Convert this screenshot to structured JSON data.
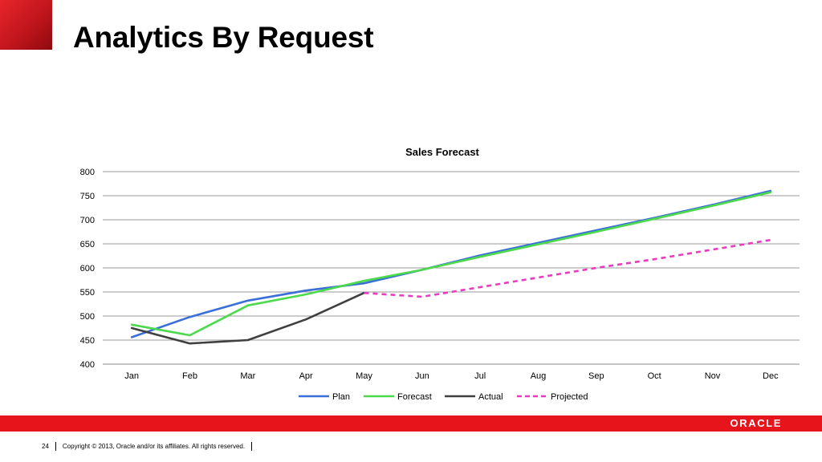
{
  "slide": {
    "title": "Analytics By Request",
    "page_number": "24",
    "copyright": "Copyright © 2013, Oracle and/or its affiliates. All rights reserved.",
    "logo_text": "ORACLE",
    "colors": {
      "brand_red": "#e8141b",
      "corner": "#c0151c"
    }
  },
  "chart_data": {
    "type": "line",
    "title": "Sales Forecast",
    "categories": [
      "Jan",
      "Feb",
      "Mar",
      "Apr",
      "May",
      "Jun",
      "Jul",
      "Aug",
      "Sep",
      "Oct",
      "Nov",
      "Dec"
    ],
    "y_ticks": [
      "400",
      "450",
      "500",
      "550",
      "600",
      "650",
      "700",
      "750",
      "800"
    ],
    "ylim": [
      400,
      800
    ],
    "grid": true,
    "legend_position": "bottom",
    "series": [
      {
        "name": "Plan",
        "color": "#3b6fd8",
        "dashed": false,
        "values": [
          456,
          498,
          532,
          553,
          568,
          596,
          626,
          652,
          678,
          704,
          731,
          760
        ]
      },
      {
        "name": "Forecast",
        "color": "#4cd94c",
        "dashed": false,
        "values": [
          482,
          460,
          522,
          545,
          573,
          596,
          623,
          649,
          675,
          702,
          729,
          757
        ]
      },
      {
        "name": "Actual",
        "color": "#404040",
        "dashed": false,
        "values": [
          475,
          443,
          450,
          493,
          548,
          null,
          null,
          null,
          null,
          null,
          null,
          null
        ]
      },
      {
        "name": "Projected",
        "color": "#e83cc0",
        "dashed": true,
        "values": [
          null,
          null,
          null,
          null,
          548,
          540,
          560,
          580,
          600,
          618,
          638,
          658
        ]
      }
    ]
  }
}
